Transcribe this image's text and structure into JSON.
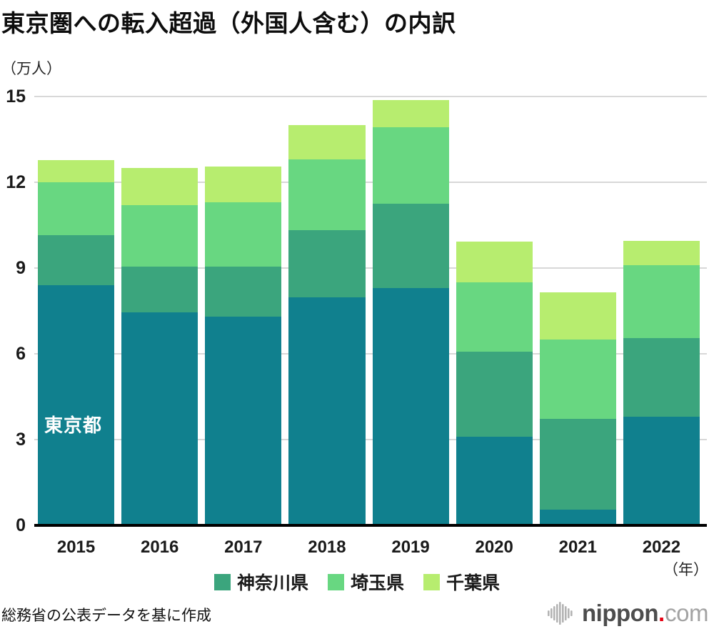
{
  "title": "東京圏への転入超過（外国人含む）の内訳",
  "unit_label": "（万人）",
  "year_label": "（年）",
  "tokyo_bar_label": "東京都",
  "source_note": "総務省の公表データを基に作成",
  "logo": {
    "icon": "sound-bars-icon",
    "text_bold": "nippon",
    "dot": ".",
    "text_light": "com"
  },
  "colors": {
    "tokyo": "#10808E",
    "kanagawa": "#3BA57D",
    "saitama": "#68D781",
    "chiba": "#B7ED6F",
    "gridline": "#D8D8D8",
    "axis": "#000000",
    "logo_red": "#E60012"
  },
  "chart_data": {
    "type": "bar",
    "stacked": true,
    "title": "東京圏への転入超過（外国人含む）の内訳",
    "ylabel": "（万人）",
    "xlabel": "（年）",
    "ylim": [
      0,
      15
    ],
    "yticks": [
      0,
      3,
      6,
      9,
      12,
      15
    ],
    "grid": true,
    "legend_position": "bottom",
    "categories": [
      "2015",
      "2016",
      "2017",
      "2018",
      "2019",
      "2020",
      "2021",
      "2022"
    ],
    "series": [
      {
        "name": "東京都",
        "color_key": "tokyo",
        "values": [
          8.4,
          7.45,
          7.3,
          7.98,
          8.3,
          3.11,
          0.54,
          3.8
        ]
      },
      {
        "name": "神奈川県",
        "color_key": "kanagawa",
        "values": [
          1.75,
          1.6,
          1.75,
          2.35,
          2.96,
          2.96,
          3.18,
          2.76
        ]
      },
      {
        "name": "埼玉県",
        "color_key": "saitama",
        "values": [
          1.85,
          2.15,
          2.25,
          2.47,
          2.67,
          2.43,
          2.78,
          2.54
        ]
      },
      {
        "name": "千葉県",
        "color_key": "chiba",
        "values": [
          0.78,
          1.3,
          1.25,
          1.21,
          0.95,
          1.43,
          1.66,
          0.86
        ]
      }
    ],
    "totals": [
      12.78,
      12.5,
      12.55,
      14.01,
      14.88,
      9.93,
      8.16,
      9.96
    ],
    "legend": [
      {
        "label": "神奈川県",
        "color_key": "kanagawa"
      },
      {
        "label": "埼玉県",
        "color_key": "saitama"
      },
      {
        "label": "千葉県",
        "color_key": "chiba"
      }
    ]
  }
}
